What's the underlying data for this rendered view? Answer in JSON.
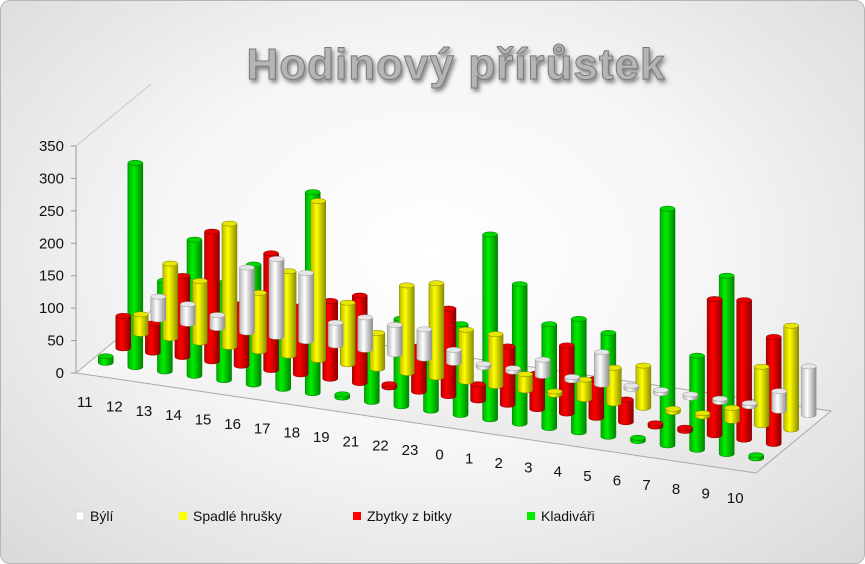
{
  "chart_data": {
    "type": "bar",
    "title": "Hodinový přírůstek",
    "xlabel": "",
    "ylabel": "",
    "ylim": [
      0,
      350
    ],
    "yticks": [
      0,
      50,
      100,
      150,
      200,
      250,
      300,
      350
    ],
    "grid": false,
    "legend_position": "bottom",
    "categories": [
      "11",
      "12",
      "13",
      "14",
      "15",
      "16",
      "17",
      "18",
      "19",
      "21",
      "22",
      "23",
      "0",
      "1",
      "2",
      "3",
      "4",
      "5",
      "6",
      "7",
      "8",
      "9",
      "10"
    ],
    "series": [
      {
        "name": "Býlí",
        "color": "#ffffff",
        "values": [
          35,
          30,
          20,
          100,
          120,
          105,
          35,
          50,
          45,
          45,
          20,
          5,
          5,
          25,
          5,
          50,
          5,
          5,
          5,
          5,
          5,
          30,
          75
        ]
      },
      {
        "name": "Spadlé hrušky",
        "color": "#ffff00",
        "values": [
          30,
          115,
          95,
          190,
          90,
          130,
          245,
          95,
          55,
          135,
          145,
          80,
          80,
          25,
          5,
          30,
          55,
          65,
          5,
          5,
          20,
          90,
          160
        ]
      },
      {
        "name": "Zbytky z bitky",
        "color": "#ff0000",
        "values": [
          50,
          45,
          125,
          200,
          95,
          180,
          105,
          120,
          135,
          5,
          70,
          135,
          25,
          90,
          55,
          105,
          60,
          35,
          5,
          5,
          210,
          215,
          165
        ]
      },
      {
        "name": "Kladiváři",
        "color": "#00ee00",
        "values": [
          10,
          315,
          140,
          210,
          150,
          185,
          165,
          310,
          5,
          100,
          135,
          75,
          140,
          285,
          215,
          160,
          175,
          160,
          5,
          365,
          145,
          275,
          5
        ]
      }
    ]
  }
}
